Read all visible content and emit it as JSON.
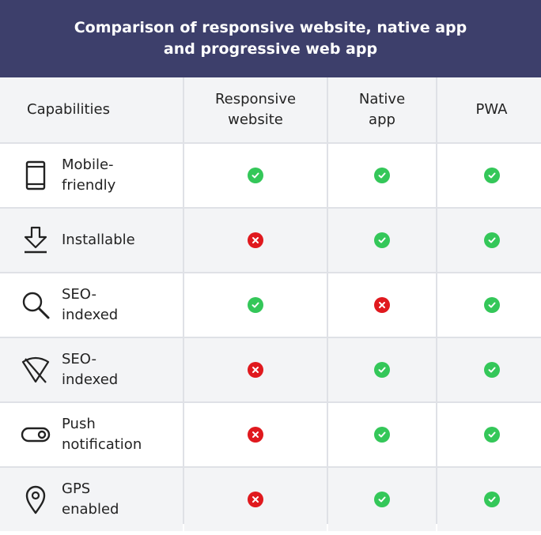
{
  "title": "Comparison of responsive website, native app and progressive web app",
  "columns": [
    "Capabilities",
    "Responsive website",
    "Native app",
    "PWA"
  ],
  "rows": [
    {
      "label": "Mobile-friendly",
      "icon": "mobile-phone-icon",
      "values": [
        "yes",
        "yes",
        "yes"
      ]
    },
    {
      "label": "Installable",
      "icon": "download-tray-icon",
      "values": [
        "no",
        "yes",
        "yes"
      ]
    },
    {
      "label": "SEO-indexed",
      "icon": "magnifier-icon",
      "values": [
        "yes",
        "no",
        "yes"
      ]
    },
    {
      "label": "SEO-indexed",
      "icon": "wifi-off-icon",
      "values": [
        "no",
        "yes",
        "yes"
      ]
    },
    {
      "label": "Push notification",
      "icon": "toggle-switch-icon",
      "values": [
        "no",
        "yes",
        "yes"
      ]
    },
    {
      "label": "GPS enabled",
      "icon": "location-pin-icon",
      "values": [
        "no",
        "yes",
        "yes"
      ]
    }
  ],
  "colors": {
    "header_bg": "#3d3f6b",
    "yes": "#34c759",
    "no": "#e0191e",
    "shaded_row": "#f3f4f6",
    "grid_line": "#dfe1e6"
  }
}
